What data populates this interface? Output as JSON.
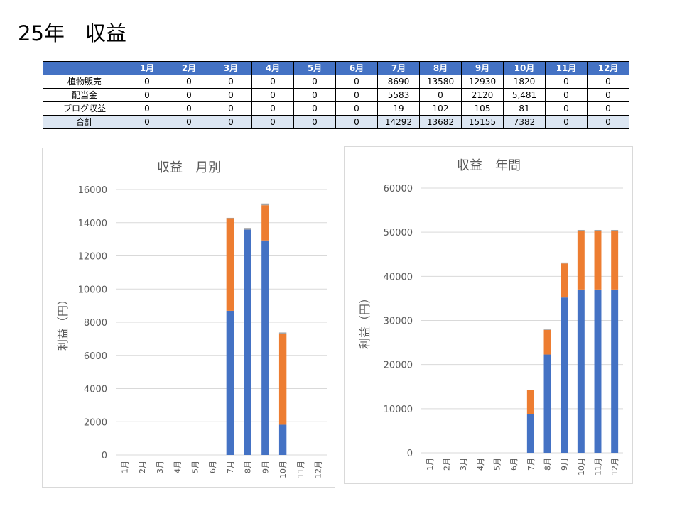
{
  "page": {
    "title": "25年　収益"
  },
  "table": {
    "headers": [
      "",
      "1月",
      "2月",
      "3月",
      "4月",
      "5月",
      "6月",
      "7月",
      "8月",
      "9月",
      "10月",
      "11月",
      "12月"
    ],
    "rows": [
      {
        "label": "植物販売",
        "values": [
          "0",
          "0",
          "0",
          "0",
          "0",
          "0",
          "8690",
          "13580",
          "12930",
          "1820",
          "0",
          "0"
        ]
      },
      {
        "label": "配当金",
        "values": [
          "0",
          "0",
          "0",
          "0",
          "0",
          "0",
          "5583",
          "0",
          "2120",
          "5,481",
          "0",
          "0"
        ]
      },
      {
        "label": "ブログ収益",
        "values": [
          "0",
          "0",
          "0",
          "0",
          "0",
          "0",
          "19",
          "102",
          "105",
          "81",
          "0",
          "0"
        ]
      },
      {
        "label": "合計",
        "values": [
          "0",
          "0",
          "0",
          "0",
          "0",
          "0",
          "14292",
          "13682",
          "15155",
          "7382",
          "0",
          "0"
        ]
      }
    ]
  },
  "colors": {
    "series1": "#4472c4",
    "series2": "#ed7d31",
    "series3": "#a5a5a5",
    "header_bg": "#4472c4",
    "total_bg": "#dce6f2"
  },
  "chart_data": [
    {
      "type": "bar",
      "stacked": true,
      "title": "収益　月別",
      "ylabel": "利益（円）",
      "xlabel": "",
      "categories": [
        "1月",
        "2月",
        "3月",
        "4月",
        "5月",
        "6月",
        "7月",
        "8月",
        "9月",
        "10月",
        "11月",
        "12月"
      ],
      "yticks": [
        "0",
        "2000",
        "4000",
        "6000",
        "8000",
        "10000",
        "12000",
        "14000",
        "16000"
      ],
      "ylim": [
        0,
        16000
      ],
      "grid": true,
      "legend": "none",
      "series": [
        {
          "values": [
            0,
            0,
            0,
            0,
            0,
            0,
            8690,
            13580,
            12930,
            1820,
            0,
            0
          ]
        },
        {
          "values": [
            0,
            0,
            0,
            0,
            0,
            0,
            5583,
            0,
            2120,
            5481,
            0,
            0
          ]
        },
        {
          "values": [
            0,
            0,
            0,
            0,
            0,
            0,
            19,
            102,
            105,
            81,
            0,
            0
          ]
        }
      ]
    },
    {
      "type": "bar",
      "stacked": true,
      "title": "収益　年間",
      "ylabel": "利益（円）",
      "xlabel": "",
      "categories": [
        "1月",
        "2月",
        "3月",
        "4月",
        "5月",
        "6月",
        "7月",
        "8月",
        "9月",
        "10月",
        "11月",
        "12月"
      ],
      "yticks": [
        "0",
        "10000",
        "20000",
        "30000",
        "40000",
        "50000",
        "60000"
      ],
      "ylim": [
        0,
        60000
      ],
      "grid": true,
      "legend": "none",
      "series": [
        {
          "values": [
            0,
            0,
            0,
            0,
            0,
            0,
            8690,
            22270,
            35200,
            37020,
            37020,
            37020
          ]
        },
        {
          "values": [
            0,
            0,
            0,
            0,
            0,
            0,
            5583,
            5583,
            7703,
            13184,
            13184,
            13184
          ]
        },
        {
          "values": [
            0,
            0,
            0,
            0,
            0,
            0,
            19,
            121,
            226,
            307,
            307,
            307
          ]
        }
      ]
    }
  ]
}
